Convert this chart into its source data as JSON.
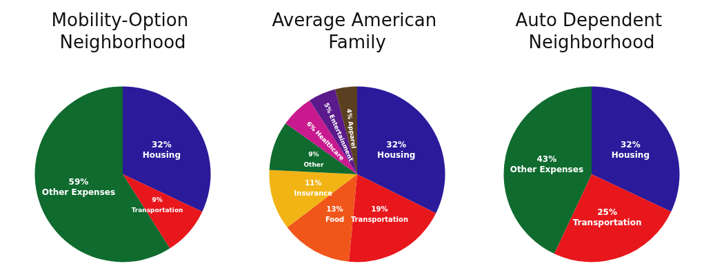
{
  "chart_data": [
    {
      "type": "pie",
      "title": "Mobility-Option Neighborhood",
      "categories": [
        "Housing",
        "Transportation",
        "Other Expenses"
      ],
      "values": [
        32,
        9,
        59
      ],
      "value_labels": [
        "32%",
        "9%",
        "59%"
      ],
      "colors": [
        "#2b1a9a",
        "#e8171c",
        "#0f6b2e"
      ]
    },
    {
      "type": "pie",
      "title": "Average American Family",
      "categories": [
        "Housing",
        "Transportation",
        "Food",
        "Insurance",
        "Other",
        "Healthcare",
        "Entertainment",
        "Apparel"
      ],
      "values": [
        32,
        19,
        13,
        11,
        9,
        6,
        5,
        4
      ],
      "value_labels": [
        "32%",
        "19%",
        "13%",
        "11%",
        "9%",
        "6%",
        "5%",
        "4%"
      ],
      "colors": [
        "#2b1a9a",
        "#e8171c",
        "#f0561a",
        "#f2b415",
        "#0f6b2e",
        "#c8198e",
        "#5a1a8c",
        "#5a4020"
      ]
    },
    {
      "type": "pie",
      "title": "Auto Dependent Neighborhood",
      "categories": [
        "Housing",
        "Transportation",
        "Other Expenses"
      ],
      "values": [
        32,
        25,
        43
      ],
      "value_labels": [
        "32%",
        "25%",
        "43%"
      ],
      "colors": [
        "#2b1a9a",
        "#e8171c",
        "#0f6b2e"
      ]
    }
  ]
}
